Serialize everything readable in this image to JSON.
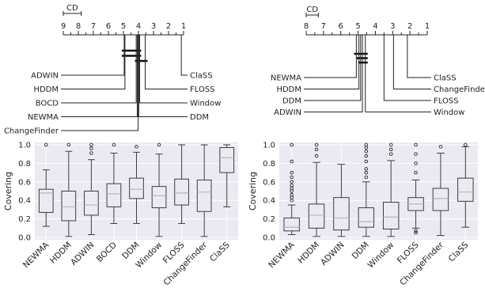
{
  "chart_data": [
    {
      "type": "cd-diagram",
      "cd_label": "CD",
      "axis_ticks": [
        "9",
        "8",
        "7",
        "6",
        "5",
        "4",
        "3",
        "2",
        "1"
      ],
      "axis_range": [
        9,
        1
      ],
      "cd_width": 1.2,
      "left_methods": [
        {
          "name": "ADWIN",
          "rank": 4.95
        },
        {
          "name": "HDDM",
          "rank": 4.9
        },
        {
          "name": "BOCD",
          "rank": 4.15
        },
        {
          "name": "NEWMA",
          "rank": 4.08
        },
        {
          "name": "ChangeFinder",
          "rank": 4.02
        }
      ],
      "right_methods": [
        {
          "name": "ClaSS",
          "rank": 1.15
        },
        {
          "name": "FLOSS",
          "rank": 3.55
        },
        {
          "name": "Window",
          "rank": 3.92
        },
        {
          "name": "DDM",
          "rank": 3.98
        }
      ],
      "cliques": [
        [
          4.95,
          3.98
        ],
        [
          4.95,
          3.98
        ],
        [
          4.08,
          3.55
        ]
      ]
    },
    {
      "type": "cd-diagram",
      "cd_label": "CD",
      "axis_ticks": [
        "8",
        "7",
        "6",
        "5",
        "4",
        "3",
        "2",
        "1"
      ],
      "axis_range": [
        8,
        1
      ],
      "cd_width": 0.7,
      "left_methods": [
        {
          "name": "NEWMA",
          "rank": 5.1
        },
        {
          "name": "HDDM",
          "rank": 4.95
        },
        {
          "name": "DDM",
          "rank": 4.85
        },
        {
          "name": "ADWIN",
          "rank": 4.75
        }
      ],
      "right_methods": [
        {
          "name": "ClaSS",
          "rank": 2.15
        },
        {
          "name": "ChangeFinder",
          "rank": 2.95
        },
        {
          "name": "FLOSS",
          "rank": 3.5
        },
        {
          "name": "Window",
          "rank": 4.58
        }
      ],
      "cliques": [
        [
          5.1,
          4.58
        ],
        [
          4.95,
          4.58
        ],
        [
          4.85,
          4.58
        ]
      ]
    },
    {
      "type": "box",
      "ylabel": "Covering",
      "ylim": [
        0,
        1
      ],
      "yticks": [
        "0.0",
        "0.2",
        "0.4",
        "0.6",
        "0.8",
        "1.0"
      ],
      "categories": [
        "NEWMA",
        "HDDM",
        "ADWIN",
        "BOCD",
        "DDM",
        "Window",
        "FLOSS",
        "ChangeFinder",
        "ClaSS"
      ],
      "boxes": [
        {
          "min": 0.12,
          "q1": 0.27,
          "median": 0.48,
          "q3": 0.52,
          "max": 0.73,
          "outliers": [
            1.0
          ]
        },
        {
          "min": 0.01,
          "q1": 0.18,
          "median": 0.33,
          "q3": 0.5,
          "max": 0.93,
          "outliers": [
            1.0
          ]
        },
        {
          "min": 0.03,
          "q1": 0.24,
          "median": 0.35,
          "q3": 0.5,
          "max": 0.84,
          "outliers": [
            0.91,
            0.96,
            1.0
          ]
        },
        {
          "min": 0.15,
          "q1": 0.33,
          "median": 0.47,
          "q3": 0.58,
          "max": 0.91,
          "outliers": [
            1.0
          ]
        },
        {
          "min": 0.15,
          "q1": 0.42,
          "median": 0.52,
          "q3": 0.64,
          "max": 0.92,
          "outliers": [
            0.98
          ]
        },
        {
          "min": 0.01,
          "q1": 0.32,
          "median": 0.45,
          "q3": 0.55,
          "max": 0.9,
          "outliers": [
            1.0
          ]
        },
        {
          "min": 0.15,
          "q1": 0.35,
          "median": 0.48,
          "q3": 0.63,
          "max": 1.0,
          "outliers": []
        },
        {
          "min": 0.01,
          "q1": 0.28,
          "median": 0.49,
          "q3": 0.62,
          "max": 1.0,
          "outliers": []
        },
        {
          "min": 0.33,
          "q1": 0.7,
          "median": 0.86,
          "q3": 0.97,
          "max": 1.0,
          "outliers": []
        }
      ]
    },
    {
      "type": "box",
      "ylabel": "Covering",
      "ylim": [
        0,
        1
      ],
      "yticks": [
        "0.0",
        "0.2",
        "0.4",
        "0.6",
        "0.8",
        "1.0"
      ],
      "categories": [
        "NEWMA",
        "HDDM",
        "ADWIN",
        "DDM",
        "Window",
        "FLOSS",
        "ChangeFinder",
        "ClaSS"
      ],
      "boxes": [
        {
          "min": 0.03,
          "q1": 0.07,
          "median": 0.11,
          "q3": 0.21,
          "max": 0.35,
          "outliers": [
            0.4,
            0.43,
            0.46,
            0.5,
            0.53,
            0.56,
            0.6,
            0.65,
            0.7,
            0.82,
            1.0
          ]
        },
        {
          "min": 0.01,
          "q1": 0.1,
          "median": 0.24,
          "q3": 0.36,
          "max": 0.81,
          "outliers": [
            0.88,
            0.95,
            1.0
          ]
        },
        {
          "min": 0.01,
          "q1": 0.08,
          "median": 0.21,
          "q3": 0.43,
          "max": 0.79,
          "outliers": []
        },
        {
          "min": 0.01,
          "q1": 0.11,
          "median": 0.17,
          "q3": 0.32,
          "max": 0.6,
          "outliers": [
            0.65,
            0.7,
            0.74,
            0.82,
            0.88,
            0.93,
            0.97,
            1.0
          ]
        },
        {
          "min": 0.01,
          "q1": 0.09,
          "median": 0.22,
          "q3": 0.38,
          "max": 0.83,
          "outliers": [
            0.9,
            0.95,
            1.0
          ]
        },
        {
          "min": 0.1,
          "q1": 0.29,
          "median": 0.36,
          "q3": 0.43,
          "max": 0.62,
          "outliers": [
            0.05,
            0.07,
            0.7,
            0.8,
            0.9,
            1.0
          ]
        },
        {
          "min": 0.02,
          "q1": 0.29,
          "median": 0.42,
          "q3": 0.53,
          "max": 0.91,
          "outliers": [
            0.98
          ]
        },
        {
          "min": 0.11,
          "q1": 0.39,
          "median": 0.49,
          "q3": 0.64,
          "max": 0.98,
          "outliers": [
            1.0
          ]
        }
      ]
    }
  ]
}
